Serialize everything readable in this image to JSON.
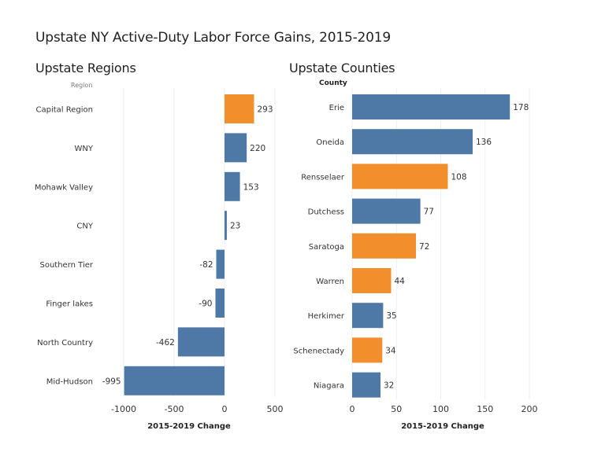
{
  "title": "Upstate NY Active-Duty Labor Force Gains, 2015-2019",
  "colors": {
    "blue": "#4E79A7",
    "orange": "#F28E2B",
    "grid": "#EFEFEF",
    "label": "#333333"
  },
  "chart_data": [
    {
      "type": "bar",
      "orientation": "horizontal",
      "title": "Upstate Regions",
      "row_header": "Region",
      "xlabel": "2015-2019 Change",
      "ylabel": "Region",
      "xlim": [
        -1050,
        500
      ],
      "xticks": [
        -1000,
        -500,
        0,
        500
      ],
      "xtick_labels": [
        "-1000",
        "-500",
        "0",
        "500"
      ],
      "grid": true,
      "categories": [
        "Capital Region",
        "WNY",
        "Mohawk Valley",
        "CNY",
        "Southern Tier",
        "Finger lakes",
        "North Country",
        "Mid-Hudson"
      ],
      "values": [
        293,
        220,
        153,
        23,
        -82,
        -90,
        -462,
        -995
      ],
      "value_labels": [
        "293",
        "220",
        "153",
        "23",
        "-82",
        "-90",
        "-462",
        "-995"
      ],
      "bar_colors": [
        "orange",
        "blue",
        "blue",
        "blue",
        "blue",
        "blue",
        "blue",
        "blue"
      ]
    },
    {
      "type": "bar",
      "orientation": "horizontal",
      "title": "Upstate Counties",
      "row_header": "County",
      "xlabel": "2015-2019 Change",
      "ylabel": "County",
      "xlim": [
        0,
        210
      ],
      "xticks": [
        0,
        50,
        100,
        150,
        200
      ],
      "xtick_labels": [
        "0",
        "50",
        "100",
        "150",
        "200"
      ],
      "grid": true,
      "categories": [
        "Erie",
        "Oneida",
        "Rensselaer",
        "Dutchess",
        "Saratoga",
        "Warren",
        "Herkimer",
        "Schenectady",
        "Niagara"
      ],
      "values": [
        178,
        136,
        108,
        77,
        72,
        44,
        35,
        34,
        32
      ],
      "value_labels": [
        "178",
        "136",
        "108",
        "77",
        "72",
        "44",
        "35",
        "34",
        "32"
      ],
      "bar_colors": [
        "blue",
        "blue",
        "orange",
        "blue",
        "orange",
        "orange",
        "blue",
        "orange",
        "blue"
      ]
    }
  ]
}
